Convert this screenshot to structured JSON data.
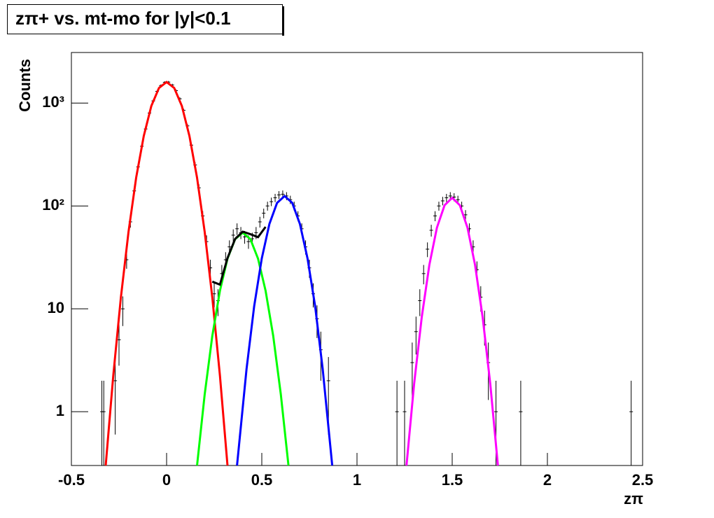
{
  "chart_data": {
    "type": "scatter",
    "title": "zπ+ vs. mt-mo for |y|<0.1",
    "x_label": "zπ",
    "y_label": "Counts",
    "log_y": true,
    "xlim": [
      -0.5,
      2.5
    ],
    "ylim": [
      0.3,
      3100
    ],
    "xticks": [
      -0.5,
      0,
      0.5,
      1,
      1.5,
      2,
      2.5
    ],
    "yticks": [
      {
        "value": 1,
        "label": "1"
      },
      {
        "value": 10,
        "label": "10"
      },
      {
        "value": 100,
        "label": "10²"
      },
      {
        "value": 1000,
        "label": "10³"
      }
    ],
    "series": [
      {
        "style": "errorbar",
        "color": "#000000",
        "x": [
          -0.34,
          -0.33,
          -0.27,
          -0.25,
          -0.23,
          -0.21,
          -0.19,
          -0.17,
          -0.15,
          -0.13,
          -0.11,
          -0.09,
          -0.07,
          -0.05,
          -0.03,
          -0.01,
          0.01,
          0.03,
          0.05,
          0.07,
          0.09,
          0.11,
          0.13,
          0.15,
          0.17,
          0.19,
          0.21,
          0.23,
          0.25,
          0.27,
          0.29,
          0.31,
          0.33,
          0.35,
          0.37,
          0.39,
          0.41,
          0.43,
          0.45,
          0.47,
          0.49,
          0.51,
          0.53,
          0.55,
          0.57,
          0.59,
          0.61,
          0.63,
          0.65,
          0.67,
          0.69,
          0.71,
          0.73,
          0.75,
          0.77,
          0.79,
          0.81,
          0.85,
          1.21,
          1.25,
          1.29,
          1.31,
          1.33,
          1.35,
          1.37,
          1.39,
          1.41,
          1.43,
          1.45,
          1.47,
          1.49,
          1.51,
          1.53,
          1.55,
          1.57,
          1.59,
          1.61,
          1.63,
          1.65,
          1.67,
          1.69,
          1.73,
          1.86,
          2.44
        ],
        "values": [
          1,
          1,
          2,
          5,
          10,
          30,
          70,
          140,
          240,
          380,
          560,
          800,
          1050,
          1300,
          1480,
          1590,
          1600,
          1500,
          1320,
          1100,
          850,
          600,
          390,
          250,
          150,
          80,
          45,
          25,
          14,
          12,
          22,
          30,
          40,
          52,
          60,
          55,
          50,
          45,
          48,
          55,
          70,
          85,
          100,
          110,
          120,
          128,
          130,
          125,
          115,
          100,
          80,
          60,
          40,
          25,
          14,
          8,
          4,
          2,
          1,
          1,
          3,
          6,
          12,
          22,
          38,
          58,
          80,
          100,
          112,
          120,
          125,
          122,
          115,
          100,
          82,
          60,
          40,
          24,
          13,
          7,
          3,
          1,
          1,
          1
        ],
        "errors": [
          1,
          1,
          1.4,
          2.2,
          3.2,
          5.5,
          8.4,
          12,
          15,
          19,
          24,
          28,
          32,
          36,
          38,
          40,
          40,
          39,
          36,
          33,
          29,
          24,
          20,
          16,
          12,
          9,
          6.7,
          5,
          3.7,
          3.5,
          4.7,
          5.5,
          6.3,
          7.2,
          7.7,
          7.4,
          7.1,
          6.7,
          6.9,
          7.4,
          8.4,
          9.2,
          10,
          10.5,
          11,
          11.3,
          11.4,
          11.2,
          10.7,
          10,
          8.9,
          7.7,
          6.3,
          5,
          3.7,
          2.8,
          2,
          1.4,
          1,
          1,
          1.7,
          2.4,
          3.5,
          4.7,
          6.2,
          7.6,
          8.9,
          10,
          10.6,
          11,
          11.2,
          11,
          10.7,
          10,
          9,
          7.7,
          6.3,
          4.9,
          3.6,
          2.6,
          1.7,
          1,
          1,
          1
        ]
      },
      {
        "style": "line",
        "color": "#ff0000",
        "x": [
          -0.32,
          -0.28,
          -0.24,
          -0.2,
          -0.16,
          -0.12,
          -0.08,
          -0.04,
          0,
          0.04,
          0.08,
          0.12,
          0.16,
          0.2,
          0.24,
          0.28,
          0.32
        ],
        "values": [
          0.3,
          2.24,
          12.9,
          56,
          188,
          479,
          936,
          1400,
          1600,
          1400,
          936,
          479,
          188,
          56,
          12.9,
          2.24,
          0.3
        ]
      },
      {
        "style": "line",
        "color": "#00ff00",
        "x": [
          0.16,
          0.2,
          0.24,
          0.28,
          0.32,
          0.36,
          0.4,
          0.44,
          0.48,
          0.52,
          0.56,
          0.6,
          0.64
        ],
        "values": [
          0.3,
          1.47,
          5.45,
          15,
          30.8,
          47.6,
          55,
          47.6,
          30.8,
          15,
          5.45,
          1.47,
          0.3
        ]
      },
      {
        "style": "line",
        "color": "#0000ff",
        "x": [
          0.37,
          0.42,
          0.46,
          0.5,
          0.54,
          0.58,
          0.62,
          0.66,
          0.7,
          0.74,
          0.78,
          0.82,
          0.87
        ],
        "values": [
          0.3,
          2.6,
          10.6,
          31,
          67,
          107,
          125,
          107,
          67,
          31,
          10.6,
          2.6,
          0.3
        ]
      },
      {
        "style": "line",
        "color": "#ff00ff",
        "x": [
          1.26,
          1.3,
          1.34,
          1.38,
          1.42,
          1.46,
          1.5,
          1.54,
          1.58,
          1.62,
          1.66,
          1.7,
          1.74
        ],
        "values": [
          0.3,
          1.86,
          8.3,
          26.8,
          61.6,
          101.5,
          120,
          101.5,
          61.6,
          26.8,
          8.3,
          1.86,
          0.3
        ]
      },
      {
        "style": "line",
        "color": "#000000",
        "x": [
          0.24,
          0.28,
          0.32,
          0.36,
          0.4,
          0.44,
          0.48,
          0.52
        ],
        "values": [
          18.4,
          17.2,
          31.1,
          47.8,
          56.2,
          53.1,
          49.7,
          62.6
        ]
      }
    ]
  }
}
